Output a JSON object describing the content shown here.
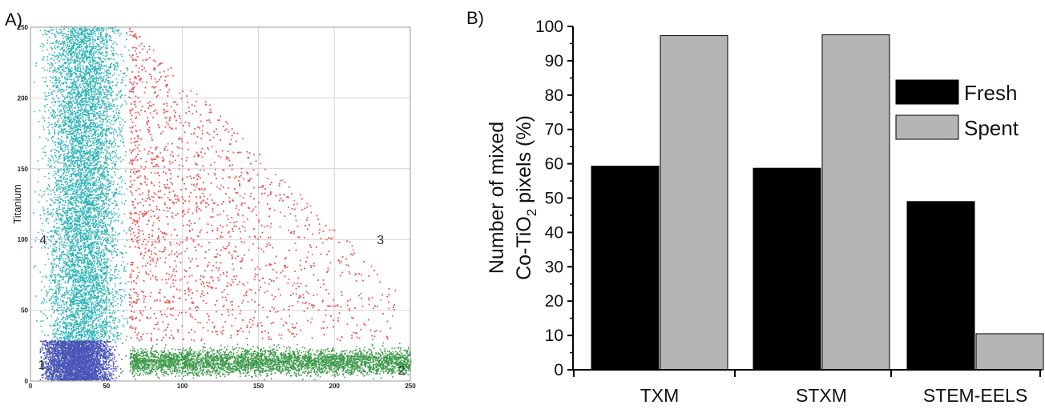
{
  "chart_data": [
    {
      "panel_label": "A)",
      "type": "scatter",
      "xlabel": "",
      "ylabel": "Titanium",
      "xlim": [
        0,
        250
      ],
      "ylim": [
        0,
        250
      ],
      "x_ticks": [
        "0",
        "50",
        "100",
        "150",
        "200",
        "250"
      ],
      "y_ticks": [
        "0",
        "50",
        "100",
        "150",
        "200",
        "250"
      ],
      "grid": true,
      "colors": {
        "region_1": "#4a56b8",
        "region_2": "#3c9a4a",
        "region_3": "#ee5555",
        "region_4": "#2fb4b8"
      },
      "regions": [
        {
          "label": "1",
          "x_range": [
            0,
            65
          ],
          "y_range": [
            0,
            28
          ],
          "approx_points": 3500
        },
        {
          "label": "2",
          "x_range": [
            65,
            250
          ],
          "y_range": [
            0,
            28
          ],
          "approx_points": 4000
        },
        {
          "label": "3",
          "x_range": [
            65,
            250
          ],
          "y_range": [
            28,
            250
          ],
          "approx_points": 5000
        },
        {
          "label": "4",
          "x_range": [
            0,
            65
          ],
          "y_range": [
            28,
            250
          ],
          "approx_points": 7000
        }
      ]
    },
    {
      "panel_label": "B)",
      "type": "bar",
      "categories": [
        "TXM",
        "STXM",
        "STEM-EELS"
      ],
      "series": [
        {
          "name": "Fresh",
          "values": [
            59.3,
            58.7,
            49.0
          ],
          "color": "#000000"
        },
        {
          "name": "Spent",
          "values": [
            97.3,
            97.6,
            10.5
          ],
          "color": "#b3b5b7"
        }
      ],
      "ylabel_line1": "Number of mixed",
      "ylabel_line2_pre": "Co-TiO",
      "ylabel_line2_sub": "2",
      "ylabel_line2_post": " pixels (%)",
      "ylim": [
        0,
        100
      ],
      "y_ticks": [
        "0",
        "10",
        "20",
        "30",
        "40",
        "50",
        "60",
        "70",
        "80",
        "90",
        "100"
      ],
      "legend_position": "top-right",
      "grid": false
    }
  ]
}
